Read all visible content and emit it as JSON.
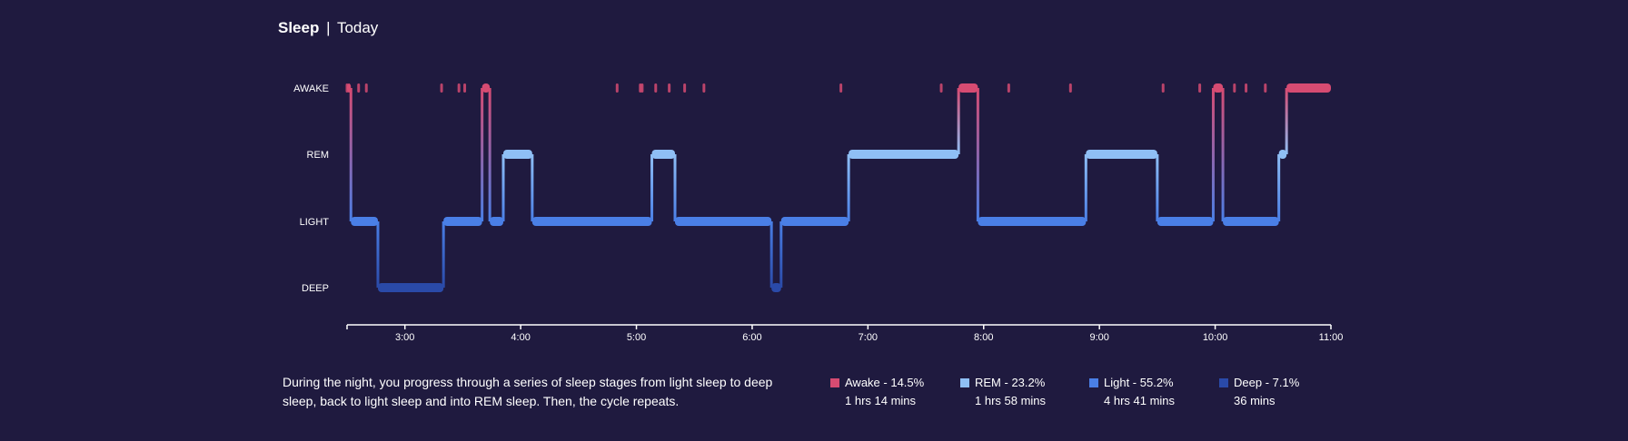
{
  "header": {
    "title": "Sleep",
    "separator": "|",
    "subtitle": "Today"
  },
  "description": "During the night, you progress through a series of sleep stages from light sleep to deep sleep, back to light sleep and into REM sleep. Then, the cycle repeats.",
  "colors": {
    "background": "#1f1a3f",
    "awake": "#d64b72",
    "rem": "#8fbff5",
    "light": "#4a7fe6",
    "deep": "#2a4aa8",
    "axis": "#ffffff"
  },
  "legend": [
    {
      "key": "awake",
      "label": "Awake - 14.5%",
      "duration": "1 hrs 14 mins",
      "color": "#d64b72"
    },
    {
      "key": "rem",
      "label": "REM - 23.2%",
      "duration": "1 hrs 58 mins",
      "color": "#8fbff5"
    },
    {
      "key": "light",
      "label": "Light - 55.2%",
      "duration": "4 hrs 41 mins",
      "color": "#4a7fe6"
    },
    {
      "key": "deep",
      "label": "Deep - 7.1%",
      "duration": "36 mins",
      "color": "#2a4aa8"
    }
  ],
  "chart_data": {
    "type": "line",
    "title": "",
    "xlabel": "",
    "ylabel": "",
    "x_range": [
      "2:30",
      "11:00"
    ],
    "x_ticks": [
      "3:00",
      "4:00",
      "5:00",
      "6:00",
      "7:00",
      "8:00",
      "9:00",
      "10:00",
      "11:00"
    ],
    "y_categories": [
      "AWAKE",
      "REM",
      "LIGHT",
      "DEEP"
    ],
    "segments": [
      {
        "stage": "AWAKE",
        "start": "2:30",
        "end": "2:32"
      },
      {
        "stage": "LIGHT",
        "start": "2:32",
        "end": "2:46"
      },
      {
        "stage": "DEEP",
        "start": "2:46",
        "end": "3:20"
      },
      {
        "stage": "LIGHT",
        "start": "3:20",
        "end": "3:40"
      },
      {
        "stage": "AWAKE",
        "start": "3:40",
        "end": "3:44"
      },
      {
        "stage": "LIGHT",
        "start": "3:44",
        "end": "3:51"
      },
      {
        "stage": "REM",
        "start": "3:51",
        "end": "4:06"
      },
      {
        "stage": "LIGHT",
        "start": "4:06",
        "end": "5:08"
      },
      {
        "stage": "REM",
        "start": "5:08",
        "end": "5:20"
      },
      {
        "stage": "LIGHT",
        "start": "5:20",
        "end": "6:10"
      },
      {
        "stage": "DEEP",
        "start": "6:10",
        "end": "6:15"
      },
      {
        "stage": "LIGHT",
        "start": "6:15",
        "end": "6:50"
      },
      {
        "stage": "REM",
        "start": "6:50",
        "end": "7:47"
      },
      {
        "stage": "AWAKE",
        "start": "7:47",
        "end": "7:57"
      },
      {
        "stage": "LIGHT",
        "start": "7:57",
        "end": "8:53"
      },
      {
        "stage": "REM",
        "start": "8:53",
        "end": "9:30"
      },
      {
        "stage": "LIGHT",
        "start": "9:30",
        "end": "9:59"
      },
      {
        "stage": "AWAKE",
        "start": "9:59",
        "end": "10:04"
      },
      {
        "stage": "LIGHT",
        "start": "10:04",
        "end": "10:33"
      },
      {
        "stage": "REM",
        "start": "10:33",
        "end": "10:37"
      },
      {
        "stage": "AWAKE",
        "start": "10:37",
        "end": "11:00"
      }
    ],
    "awake_marks": [
      "2:30",
      "2:36",
      "2:40",
      "3:19",
      "3:28",
      "3:31",
      "4:50",
      "5:10",
      "5:02",
      "5:03",
      "5:17",
      "5:25",
      "5:35",
      "6:46",
      "7:38",
      "8:13",
      "8:45",
      "9:33",
      "9:52",
      "10:10",
      "10:16",
      "10:26"
    ],
    "summary": [
      {
        "stage": "Awake",
        "percent": 14.5,
        "duration": "1 hrs 14 mins"
      },
      {
        "stage": "REM",
        "percent": 23.2,
        "duration": "1 hrs 58 mins"
      },
      {
        "stage": "Light",
        "percent": 55.2,
        "duration": "4 hrs 41 mins"
      },
      {
        "stage": "Deep",
        "percent": 7.1,
        "duration": "36 mins"
      }
    ]
  }
}
